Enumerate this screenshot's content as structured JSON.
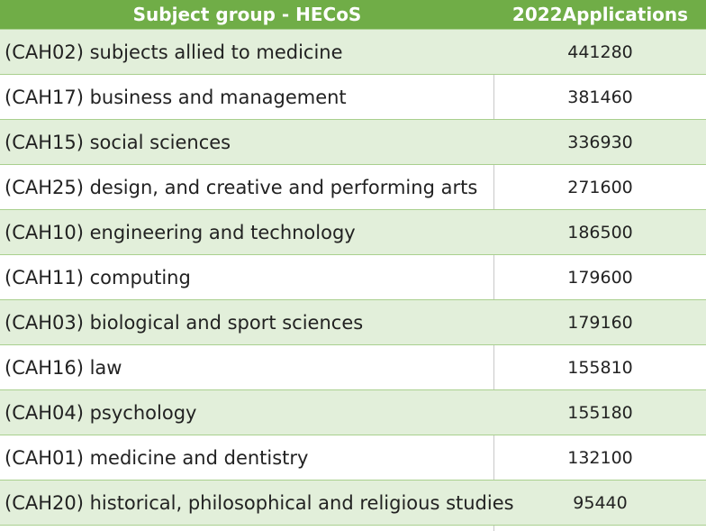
{
  "chart_data": {
    "type": "table",
    "columns": [
      "Subject group - HECoS",
      "2022Applications"
    ],
    "rows": [
      {
        "subject": "(CAH02) subjects allied to medicine",
        "applications": "441280"
      },
      {
        "subject": "(CAH17) business and management",
        "applications": "381460"
      },
      {
        "subject": "(CAH15) social sciences",
        "applications": "336930"
      },
      {
        "subject": "(CAH25) design, and creative and performing arts",
        "applications": "271600"
      },
      {
        "subject": "(CAH10) engineering and technology",
        "applications": "186500"
      },
      {
        "subject": "(CAH11) computing",
        "applications": "179600"
      },
      {
        "subject": "(CAH03) biological and sport sciences",
        "applications": "179160"
      },
      {
        "subject": "(CAH16) law",
        "applications": "155810"
      },
      {
        "subject": "(CAH04) psychology",
        "applications": "155180"
      },
      {
        "subject": "(CAH01) medicine and dentistry",
        "applications": "132100"
      },
      {
        "subject": "(CAH20) historical, philosophical and religious studies",
        "applications": "95440"
      }
    ]
  },
  "colors": {
    "header_bg": "#70ad47",
    "header_text": "#ffffff",
    "band": "#e2efda",
    "rule": "#a9d08e"
  }
}
